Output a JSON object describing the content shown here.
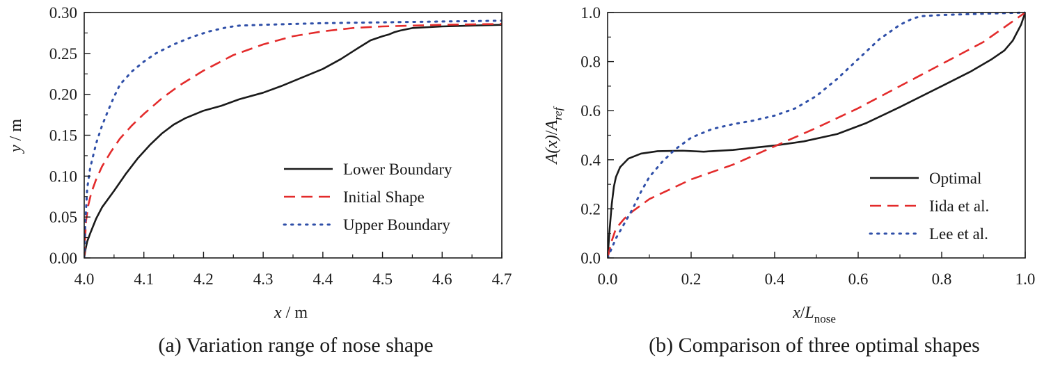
{
  "chart_data": [
    {
      "type": "line",
      "caption": "(a) Variation range of nose shape",
      "xlabel": {
        "var": "x",
        "unit": " / m"
      },
      "ylabel": {
        "var": "y",
        "unit": " / m"
      },
      "xlim": [
        4.0,
        4.7
      ],
      "ylim": [
        0.0,
        0.3
      ],
      "xticks": [
        4.0,
        4.1,
        4.2,
        4.3,
        4.4,
        4.5,
        4.6,
        4.7
      ],
      "xtick_labels": [
        "4.0",
        "4.1",
        "4.2",
        "4.3",
        "4.4",
        "4.5",
        "4.6",
        "4.7"
      ],
      "yticks": [
        0.0,
        0.05,
        0.1,
        0.15,
        0.2,
        0.25,
        0.3
      ],
      "ytick_labels": [
        "0.00",
        "0.05",
        "0.10",
        "0.15",
        "0.20",
        "0.25",
        "0.30"
      ],
      "legend_position": "bottom-right",
      "series": [
        {
          "name": "Lower Boundary",
          "style": "solid",
          "color": "#1a1a1a",
          "x": [
            4.0,
            4.002,
            4.005,
            4.01,
            4.02,
            4.03,
            4.05,
            4.07,
            4.09,
            4.11,
            4.13,
            4.15,
            4.17,
            4.2,
            4.23,
            4.26,
            4.3,
            4.33,
            4.36,
            4.4,
            4.43,
            4.46,
            4.48,
            4.5,
            4.51,
            4.52,
            4.53,
            4.55,
            4.6,
            4.65,
            4.7
          ],
          "y": [
            0.0,
            0.01,
            0.02,
            0.03,
            0.048,
            0.062,
            0.082,
            0.103,
            0.122,
            0.138,
            0.152,
            0.163,
            0.171,
            0.18,
            0.186,
            0.194,
            0.202,
            0.21,
            0.219,
            0.231,
            0.243,
            0.257,
            0.266,
            0.271,
            0.273,
            0.276,
            0.278,
            0.281,
            0.283,
            0.284,
            0.285
          ]
        },
        {
          "name": "Initial Shape",
          "style": "dashed",
          "color": "#e32b2b",
          "x": [
            4.0,
            4.003,
            4.007,
            4.012,
            4.02,
            4.03,
            4.045,
            4.06,
            4.08,
            4.1,
            4.13,
            4.16,
            4.2,
            4.25,
            4.3,
            4.35,
            4.4,
            4.45,
            4.5,
            4.55,
            4.6,
            4.7
          ],
          "y": [
            0.0,
            0.045,
            0.065,
            0.08,
            0.096,
            0.112,
            0.13,
            0.146,
            0.162,
            0.176,
            0.195,
            0.211,
            0.229,
            0.248,
            0.261,
            0.271,
            0.277,
            0.281,
            0.283,
            0.284,
            0.285,
            0.286
          ]
        },
        {
          "name": "Upper Boundary",
          "style": "dotted",
          "color": "#2f4fa8",
          "x": [
            4.0,
            4.002,
            4.005,
            4.01,
            4.015,
            4.02,
            4.03,
            4.04,
            4.05,
            4.06,
            4.08,
            4.1,
            4.12,
            4.15,
            4.18,
            4.21,
            4.24,
            4.26,
            4.3,
            4.35,
            4.4,
            4.5,
            4.6,
            4.7
          ],
          "y": [
            0.0,
            0.045,
            0.085,
            0.11,
            0.125,
            0.14,
            0.162,
            0.18,
            0.197,
            0.212,
            0.228,
            0.24,
            0.25,
            0.261,
            0.27,
            0.277,
            0.282,
            0.284,
            0.285,
            0.286,
            0.287,
            0.288,
            0.289,
            0.29
          ]
        }
      ]
    },
    {
      "type": "line",
      "caption": "(b) Comparison of three optimal shapes",
      "xlabel": {
        "var": "x",
        "sep": "/",
        "var2": "L",
        "sub": "nose"
      },
      "ylabel": {
        "func": "A",
        "arg": "(x)",
        "sep": "/",
        "var2": "A",
        "sub": "ref"
      },
      "xlim": [
        0.0,
        1.0
      ],
      "ylim": [
        0.0,
        1.0
      ],
      "xticks": [
        0.0,
        0.2,
        0.4,
        0.6,
        0.8,
        1.0
      ],
      "xtick_labels": [
        "0.0",
        "0.2",
        "0.4",
        "0.6",
        "0.8",
        "1.0"
      ],
      "yticks": [
        0.0,
        0.2,
        0.4,
        0.6,
        0.8,
        1.0
      ],
      "ytick_labels": [
        "0.0",
        "0.2",
        "0.4",
        "0.6",
        "0.8",
        "1.0"
      ],
      "legend_position": "bottom-right",
      "series": [
        {
          "name": "Optimal",
          "style": "solid",
          "color": "#1a1a1a",
          "x": [
            0.0,
            0.005,
            0.01,
            0.015,
            0.02,
            0.03,
            0.05,
            0.08,
            0.12,
            0.18,
            0.23,
            0.3,
            0.4,
            0.47,
            0.55,
            0.62,
            0.7,
            0.8,
            0.87,
            0.92,
            0.95,
            0.97,
            0.99,
            1.0
          ],
          "y": [
            0.0,
            0.12,
            0.22,
            0.29,
            0.33,
            0.37,
            0.405,
            0.425,
            0.435,
            0.437,
            0.433,
            0.44,
            0.458,
            0.475,
            0.505,
            0.55,
            0.615,
            0.7,
            0.76,
            0.81,
            0.845,
            0.885,
            0.95,
            1.0
          ]
        },
        {
          "name": "Iida et al.",
          "style": "dashed",
          "color": "#e32b2b",
          "x": [
            0.0,
            0.01,
            0.02,
            0.04,
            0.06,
            0.1,
            0.15,
            0.2,
            0.3,
            0.4,
            0.5,
            0.6,
            0.7,
            0.8,
            0.9,
            1.0
          ],
          "y": [
            0.0,
            0.07,
            0.12,
            0.16,
            0.19,
            0.24,
            0.28,
            0.32,
            0.38,
            0.455,
            0.53,
            0.61,
            0.7,
            0.79,
            0.88,
            1.0
          ]
        },
        {
          "name": "Lee et al.",
          "style": "dotted",
          "color": "#2f4fa8",
          "x": [
            0.0,
            0.01,
            0.02,
            0.04,
            0.06,
            0.08,
            0.1,
            0.13,
            0.16,
            0.2,
            0.25,
            0.3,
            0.35,
            0.4,
            0.45,
            0.5,
            0.55,
            0.6,
            0.65,
            0.7,
            0.73,
            0.75,
            0.8,
            0.9,
            1.0
          ],
          "y": [
            0.0,
            0.04,
            0.08,
            0.14,
            0.2,
            0.27,
            0.33,
            0.39,
            0.44,
            0.49,
            0.525,
            0.545,
            0.56,
            0.58,
            0.61,
            0.66,
            0.73,
            0.81,
            0.89,
            0.95,
            0.975,
            0.985,
            0.99,
            0.995,
            1.0
          ]
        }
      ]
    }
  ]
}
